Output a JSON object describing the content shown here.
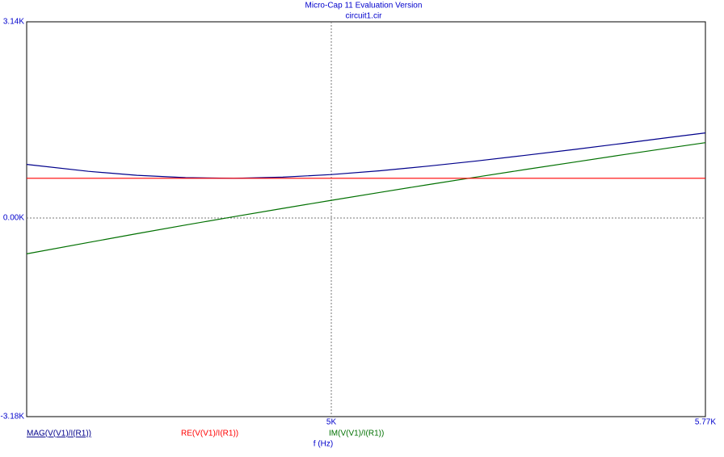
{
  "chart_data": {
    "type": "line",
    "title": "Micro-Cap 11 Evaluation Version",
    "subtitle": "circuit1.cir",
    "x_label": "f (Hz)",
    "x": [
      4373,
      4500,
      4600,
      4700,
      4800,
      4900,
      5000,
      5100,
      5200,
      5300,
      5400,
      5500,
      5600,
      5700,
      5770
    ],
    "series": [
      {
        "name": "MAG(V(V1)/I(R1))",
        "color": "#00008b",
        "values": [
          857,
          746,
          683,
          645,
          635,
          653,
          695,
          755,
          830,
          913,
          1003,
          1097,
          1194,
          1293,
          1362
        ]
      },
      {
        "name": "RE(V(V1)/I(R1))",
        "color": "#ff0000",
        "values": [
          635,
          635,
          635,
          635,
          635,
          635,
          635,
          635,
          635,
          635,
          635,
          635,
          635,
          635,
          635
        ]
      },
      {
        "name": "IM(V(V1)/I(R1))",
        "color": "#007000",
        "values": [
          -575,
          -392,
          -251,
          -113,
          21,
          153,
          282,
          409,
          534,
          656,
          776,
          894,
          1011,
          1126,
          1205
        ]
      }
    ],
    "xlim": [
      4373,
      5770
    ],
    "ylim": [
      -3180,
      3140
    ],
    "xticks": [
      {
        "value": 5000,
        "label": "5K"
      },
      {
        "value": 5770,
        "label": "5.77K"
      }
    ],
    "yticks": [
      {
        "value": 3140,
        "label": "3.14K"
      },
      {
        "value": 0,
        "label": "0.00K"
      },
      {
        "value": -3180,
        "label": "-3.18K"
      }
    ],
    "grid": true
  }
}
